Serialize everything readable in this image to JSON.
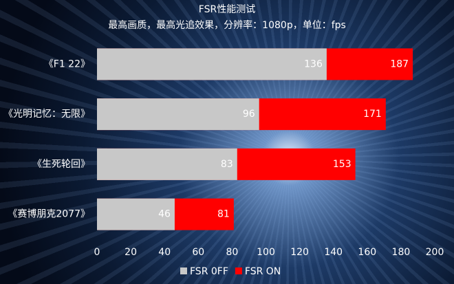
{
  "chart_data": {
    "type": "bar",
    "orientation": "horizontal",
    "title": "FSR性能测试",
    "subtitle": "最高画质，最高光追效果，分辨率：1080p，单位：fps",
    "categories": [
      "《F1 22》",
      "《光明记忆：无限》",
      "《生死轮回》",
      "《赛博朋克2077》"
    ],
    "series": [
      {
        "name": "FSR 0FF",
        "color": "#c8c8c8",
        "values": [
          136,
          96,
          83,
          46
        ]
      },
      {
        "name": "FSR ON",
        "color": "#ff0000",
        "values": [
          187,
          171,
          153,
          81
        ]
      }
    ],
    "xlim": [
      0,
      200
    ],
    "xticks": [
      0,
      20,
      40,
      60,
      80,
      100,
      120,
      140,
      160,
      180,
      200
    ],
    "grid": false,
    "legend": "bottom"
  }
}
